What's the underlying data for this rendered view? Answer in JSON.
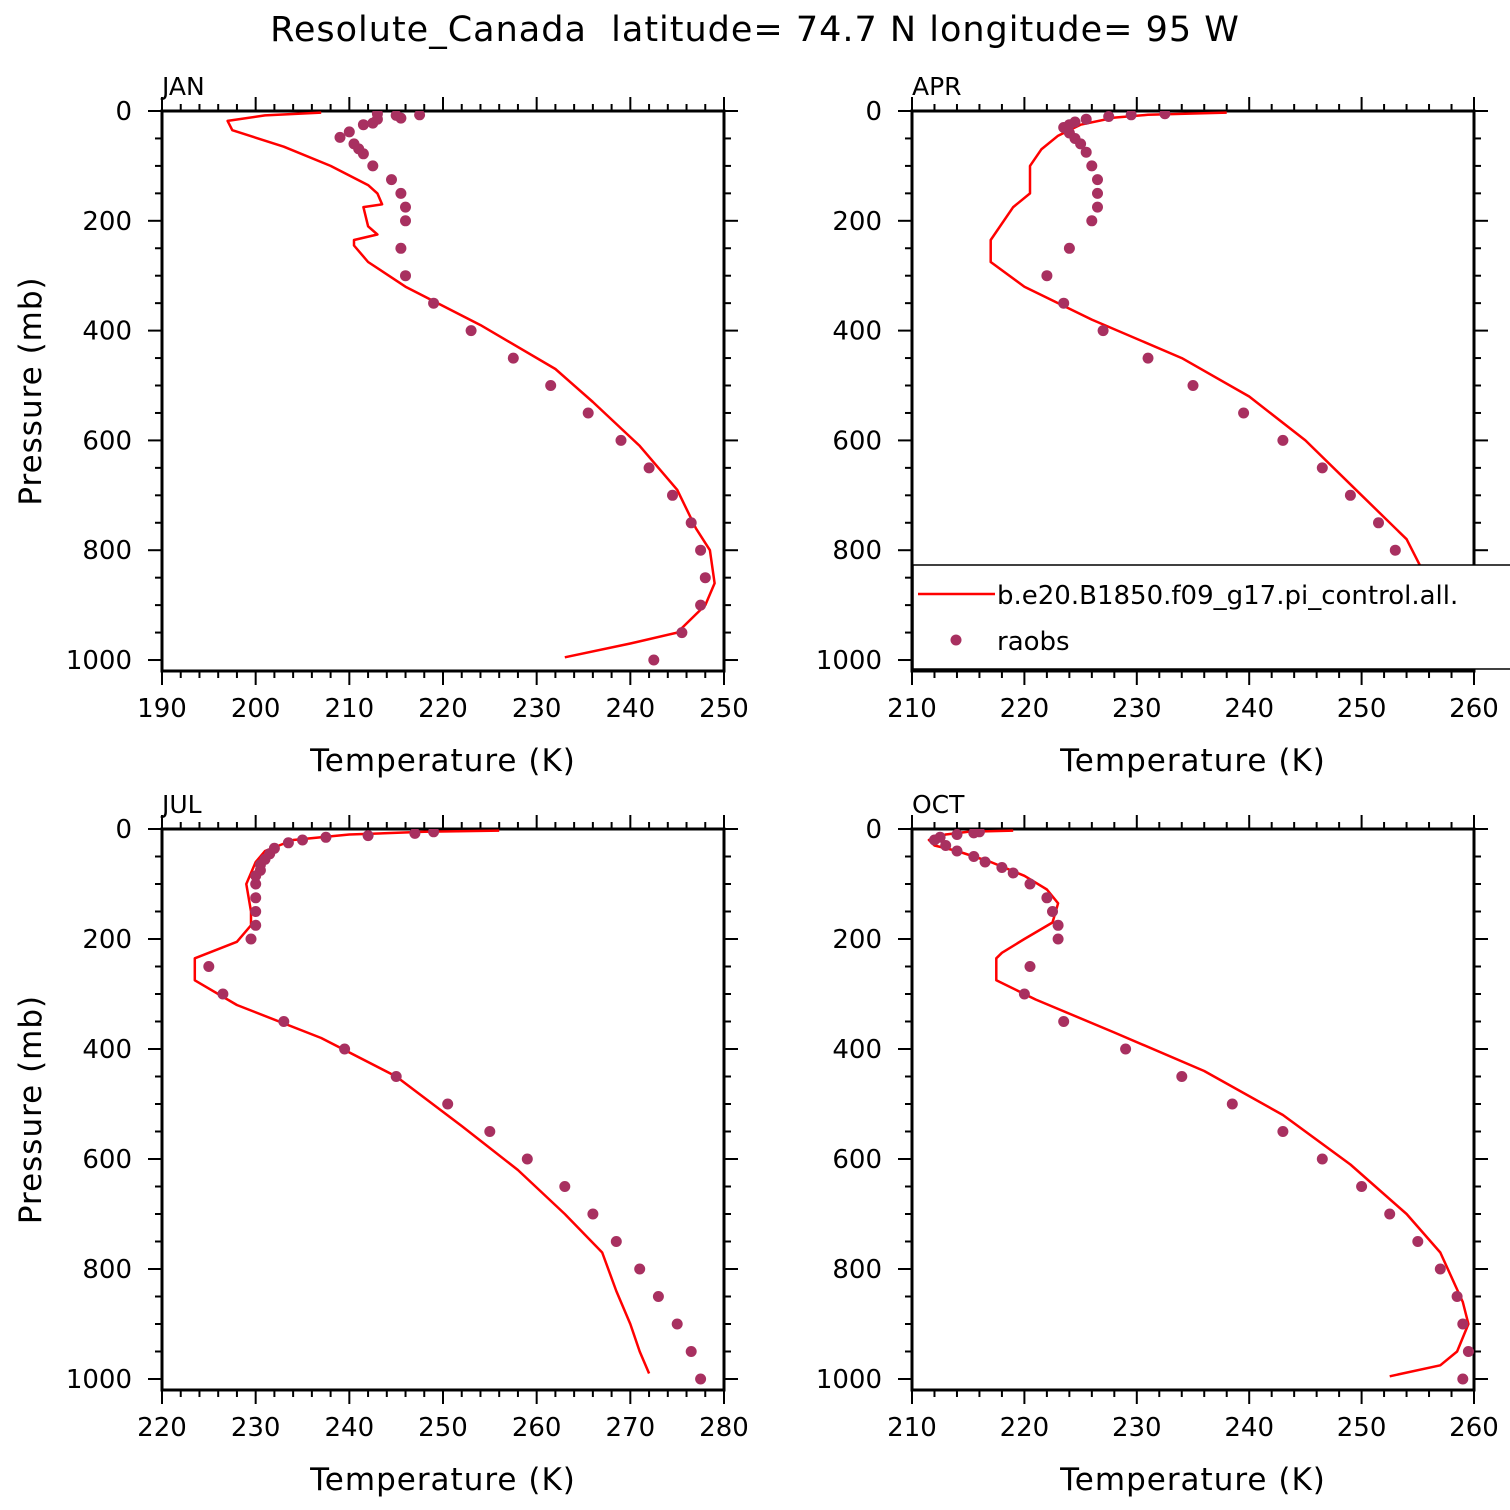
{
  "title": "Resolute_Canada  latitude= 74.7 N longitude= 95 W",
  "legend": {
    "model_label": "b.e20.B1850.f09_g17.pi_control.all.",
    "obs_label": "raobs"
  },
  "colors": {
    "model": "#ff0000",
    "obs": "#a83060"
  },
  "chart_data": [
    {
      "type": "line",
      "panel_label": "JAN",
      "xlabel": "Temperature (K)",
      "ylabel": "Pressure (mb)",
      "xlim": [
        190,
        250
      ],
      "ylim": [
        1020,
        0
      ],
      "xticks": [
        190,
        200,
        210,
        220,
        230,
        240,
        250
      ],
      "yticks": [
        0,
        200,
        400,
        600,
        800,
        1000
      ],
      "model": {
        "name": "b.e20.B1850.f09_g17.pi_control.all.",
        "points": [
          [
            207,
            3
          ],
          [
            201,
            8
          ],
          [
            197,
            18
          ],
          [
            197.5,
            35
          ],
          [
            203,
            65
          ],
          [
            208,
            100
          ],
          [
            212,
            135
          ],
          [
            213,
            150
          ],
          [
            213.5,
            170
          ],
          [
            211.5,
            175
          ],
          [
            212,
            210
          ],
          [
            213,
            225
          ],
          [
            210.5,
            235
          ],
          [
            210.5,
            245
          ],
          [
            212,
            275
          ],
          [
            216,
            320
          ],
          [
            224,
            390
          ],
          [
            232,
            470
          ],
          [
            236,
            530
          ],
          [
            241,
            610
          ],
          [
            245,
            690
          ],
          [
            247,
            760
          ],
          [
            248.5,
            800
          ],
          [
            249,
            860
          ],
          [
            248,
            900
          ],
          [
            245,
            950
          ],
          [
            240,
            970
          ],
          [
            233,
            995
          ]
        ]
      },
      "raobs": {
        "name": "raobs",
        "points": [
          [
            217.5,
            7
          ],
          [
            213,
            5
          ],
          [
            215,
            8
          ],
          [
            215.5,
            13
          ],
          [
            213,
            15
          ],
          [
            211.5,
            25
          ],
          [
            212.5,
            22
          ],
          [
            209,
            48
          ],
          [
            210,
            38
          ],
          [
            210.5,
            60
          ],
          [
            211,
            69
          ],
          [
            211.5,
            78
          ],
          [
            212.5,
            100
          ],
          [
            214.5,
            125
          ],
          [
            215.5,
            150
          ],
          [
            216,
            175
          ],
          [
            216,
            200
          ],
          [
            215.5,
            250
          ],
          [
            216,
            300
          ],
          [
            219,
            350
          ],
          [
            223,
            400
          ],
          [
            227.5,
            450
          ],
          [
            231.5,
            500
          ],
          [
            235.5,
            550
          ],
          [
            239,
            600
          ],
          [
            242,
            650
          ],
          [
            244.5,
            700
          ],
          [
            246.5,
            750
          ],
          [
            247.5,
            800
          ],
          [
            248,
            850
          ],
          [
            247.5,
            900
          ],
          [
            245.5,
            950
          ],
          [
            242.5,
            1000
          ]
        ]
      }
    },
    {
      "type": "line",
      "panel_label": "APR",
      "xlabel": "Temperature (K)",
      "ylabel": "",
      "xlim": [
        210,
        260
      ],
      "ylim": [
        1020,
        0
      ],
      "xticks": [
        210,
        220,
        230,
        240,
        250,
        260
      ],
      "yticks": [
        0,
        200,
        400,
        600,
        800,
        1000
      ],
      "model": {
        "name": "b.e20.B1850.f09_g17.pi_control.all.",
        "points": [
          [
            238,
            3
          ],
          [
            231,
            7
          ],
          [
            228,
            12
          ],
          [
            225,
            25
          ],
          [
            223,
            45
          ],
          [
            221.5,
            70
          ],
          [
            220.5,
            100
          ],
          [
            220.5,
            125
          ],
          [
            220.5,
            150
          ],
          [
            219,
            175
          ],
          [
            217,
            235
          ],
          [
            217,
            275
          ],
          [
            220,
            320
          ],
          [
            226,
            380
          ],
          [
            234,
            450
          ],
          [
            240,
            520
          ],
          [
            245,
            600
          ],
          [
            250,
            700
          ],
          [
            254,
            780
          ],
          [
            256,
            860
          ],
          [
            255,
            910
          ],
          [
            251,
            960
          ],
          [
            246,
            1000
          ]
        ]
      },
      "raobs": {
        "name": "raobs",
        "points": [
          [
            232.5,
            5
          ],
          [
            229.5,
            7
          ],
          [
            227.5,
            10
          ],
          [
            225.5,
            15
          ],
          [
            224.5,
            20
          ],
          [
            224,
            25
          ],
          [
            223.5,
            30
          ],
          [
            224,
            40
          ],
          [
            224.5,
            50
          ],
          [
            225,
            60
          ],
          [
            225.5,
            75
          ],
          [
            226,
            100
          ],
          [
            226.5,
            125
          ],
          [
            226.5,
            150
          ],
          [
            226.5,
            175
          ],
          [
            226,
            200
          ],
          [
            224,
            250
          ],
          [
            222,
            300
          ],
          [
            223.5,
            350
          ],
          [
            227,
            400
          ],
          [
            231,
            450
          ],
          [
            235,
            500
          ],
          [
            239.5,
            550
          ],
          [
            243,
            600
          ],
          [
            246.5,
            650
          ],
          [
            249,
            700
          ],
          [
            251.5,
            750
          ],
          [
            253,
            800
          ],
          [
            254,
            850
          ],
          [
            254,
            900
          ],
          [
            253,
            950
          ],
          [
            251,
            1000
          ]
        ]
      }
    },
    {
      "type": "line",
      "panel_label": "JUL",
      "xlabel": "Temperature (K)",
      "ylabel": "Pressure (mb)",
      "xlim": [
        220,
        280
      ],
      "ylim": [
        1020,
        0
      ],
      "xticks": [
        220,
        230,
        240,
        250,
        260,
        270,
        280
      ],
      "yticks": [
        0,
        200,
        400,
        600,
        800,
        1000
      ],
      "model": {
        "name": "b.e20.B1850.f09_g17.pi_control.all.",
        "points": [
          [
            256,
            3
          ],
          [
            248,
            5
          ],
          [
            240,
            10
          ],
          [
            234,
            20
          ],
          [
            231,
            40
          ],
          [
            230,
            60
          ],
          [
            229.5,
            80
          ],
          [
            229,
            100
          ],
          [
            229.5,
            150
          ],
          [
            229.5,
            175
          ],
          [
            228,
            205
          ],
          [
            223.5,
            235
          ],
          [
            223.5,
            275
          ],
          [
            228,
            320
          ],
          [
            237,
            380
          ],
          [
            245,
            450
          ],
          [
            252,
            540
          ],
          [
            258,
            620
          ],
          [
            263,
            700
          ],
          [
            267,
            770
          ],
          [
            268.5,
            840
          ],
          [
            270,
            900
          ],
          [
            271,
            950
          ],
          [
            272,
            990
          ]
        ]
      },
      "raobs": {
        "name": "raobs",
        "points": [
          [
            249,
            5
          ],
          [
            247,
            8
          ],
          [
            242,
            12
          ],
          [
            237.5,
            15
          ],
          [
            235,
            20
          ],
          [
            233.5,
            25
          ],
          [
            232,
            35
          ],
          [
            231.5,
            45
          ],
          [
            231,
            55
          ],
          [
            230.5,
            65
          ],
          [
            230.5,
            75
          ],
          [
            230,
            85
          ],
          [
            230,
            100
          ],
          [
            230,
            125
          ],
          [
            230,
            150
          ],
          [
            230,
            175
          ],
          [
            229.5,
            200
          ],
          [
            225,
            250
          ],
          [
            226.5,
            300
          ],
          [
            233,
            350
          ],
          [
            239.5,
            400
          ],
          [
            245,
            450
          ],
          [
            250.5,
            500
          ],
          [
            255,
            550
          ],
          [
            259,
            600
          ],
          [
            263,
            650
          ],
          [
            266,
            700
          ],
          [
            268.5,
            750
          ],
          [
            271,
            800
          ],
          [
            273,
            850
          ],
          [
            275,
            900
          ],
          [
            276.5,
            950
          ],
          [
            277.5,
            1000
          ]
        ]
      }
    },
    {
      "type": "line",
      "panel_label": "OCT",
      "xlabel": "Temperature (K)",
      "ylabel": "",
      "xlim": [
        210,
        260
      ],
      "ylim": [
        1020,
        0
      ],
      "xticks": [
        210,
        220,
        230,
        240,
        250,
        260
      ],
      "yticks": [
        0,
        200,
        400,
        600,
        800,
        1000
      ],
      "model": {
        "name": "b.e20.B1850.f09_g17.pi_control.all.",
        "points": [
          [
            219,
            3
          ],
          [
            215,
            5
          ],
          [
            213,
            10
          ],
          [
            211.5,
            20
          ],
          [
            212,
            30
          ],
          [
            214,
            40
          ],
          [
            217,
            60
          ],
          [
            220,
            85
          ],
          [
            222,
            110
          ],
          [
            223,
            135
          ],
          [
            222.5,
            170
          ],
          [
            220,
            200
          ],
          [
            218,
            225
          ],
          [
            217.5,
            235
          ],
          [
            217.5,
            275
          ],
          [
            221,
            310
          ],
          [
            228,
            370
          ],
          [
            236,
            440
          ],
          [
            243,
            520
          ],
          [
            249,
            610
          ],
          [
            254,
            700
          ],
          [
            257,
            770
          ],
          [
            259,
            860
          ],
          [
            259.5,
            900
          ],
          [
            258.5,
            950
          ],
          [
            257,
            975
          ],
          [
            252.5,
            995
          ]
        ]
      },
      "raobs": {
        "name": "raobs",
        "points": [
          [
            216,
            5
          ],
          [
            215.5,
            7
          ],
          [
            214,
            10
          ],
          [
            212.5,
            15
          ],
          [
            212,
            20
          ],
          [
            213,
            30
          ],
          [
            214,
            40
          ],
          [
            215.5,
            50
          ],
          [
            216.5,
            60
          ],
          [
            218,
            70
          ],
          [
            219,
            80
          ],
          [
            220.5,
            100
          ],
          [
            222,
            125
          ],
          [
            222.5,
            150
          ],
          [
            223,
            175
          ],
          [
            223,
            200
          ],
          [
            220.5,
            250
          ],
          [
            220,
            300
          ],
          [
            223.5,
            350
          ],
          [
            229,
            400
          ],
          [
            234,
            450
          ],
          [
            238.5,
            500
          ],
          [
            243,
            550
          ],
          [
            246.5,
            600
          ],
          [
            250,
            650
          ],
          [
            252.5,
            700
          ],
          [
            255,
            750
          ],
          [
            257,
            800
          ],
          [
            258.5,
            850
          ],
          [
            259,
            900
          ],
          [
            259.5,
            950
          ],
          [
            259,
            1000
          ]
        ]
      }
    }
  ]
}
